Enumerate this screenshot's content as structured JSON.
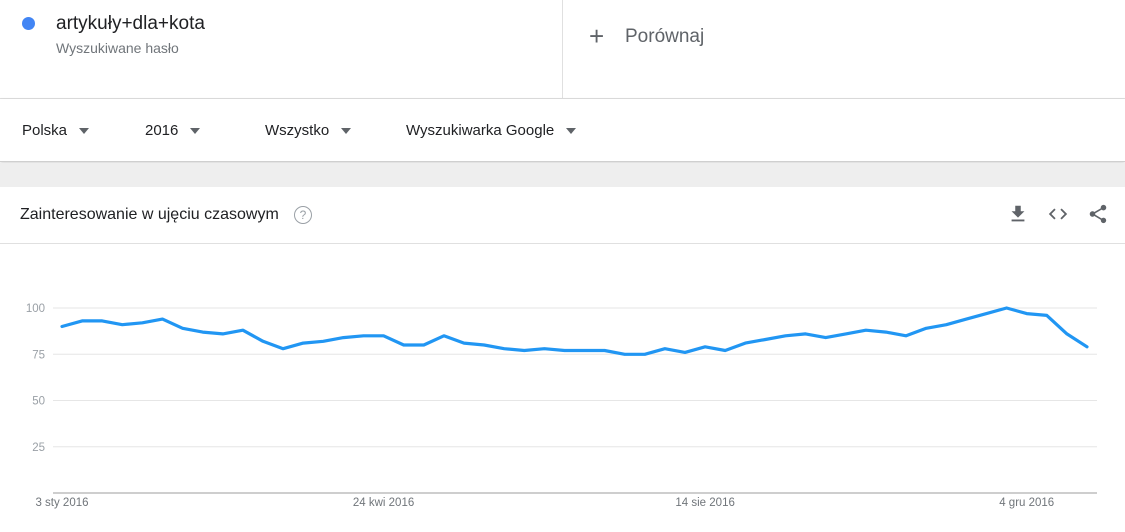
{
  "search_term": {
    "label": "artykuły+dla+kota",
    "sublabel": "Wyszukiwane hasło",
    "color": "#4285f4"
  },
  "compare": {
    "icon": "plus-icon",
    "label": "Porównaj"
  },
  "filters": {
    "region": "Polska",
    "period": "2016",
    "category": "Wszystko",
    "source": "Wyszukiwarka Google"
  },
  "card": {
    "title": "Zainteresowanie w ujęciu czasowym",
    "help_icon": "help-icon",
    "tools": [
      "download-icon",
      "embed-code-icon",
      "share-icon"
    ]
  },
  "chart_data": {
    "type": "line",
    "ylim": [
      0,
      100
    ],
    "y_ticks": [
      "25",
      "50",
      "75",
      "100"
    ],
    "x_tick_labels": [
      "3 sty 2016",
      "24 kwi 2016",
      "14 sie 2016",
      "4 gru 2016"
    ],
    "line_color": "#2196f3",
    "series": [
      {
        "values": [
          90,
          93,
          93,
          91,
          92,
          94,
          89,
          87,
          86,
          88,
          82,
          78,
          81,
          82,
          84,
          85,
          85,
          80,
          80,
          85,
          81,
          80,
          78,
          77,
          78,
          77,
          77,
          77,
          75,
          75,
          78,
          76,
          79,
          77,
          81,
          83,
          85,
          86,
          84,
          86,
          88,
          87,
          85,
          89,
          91,
          94,
          97,
          100,
          97,
          96,
          86,
          79
        ]
      }
    ]
  }
}
